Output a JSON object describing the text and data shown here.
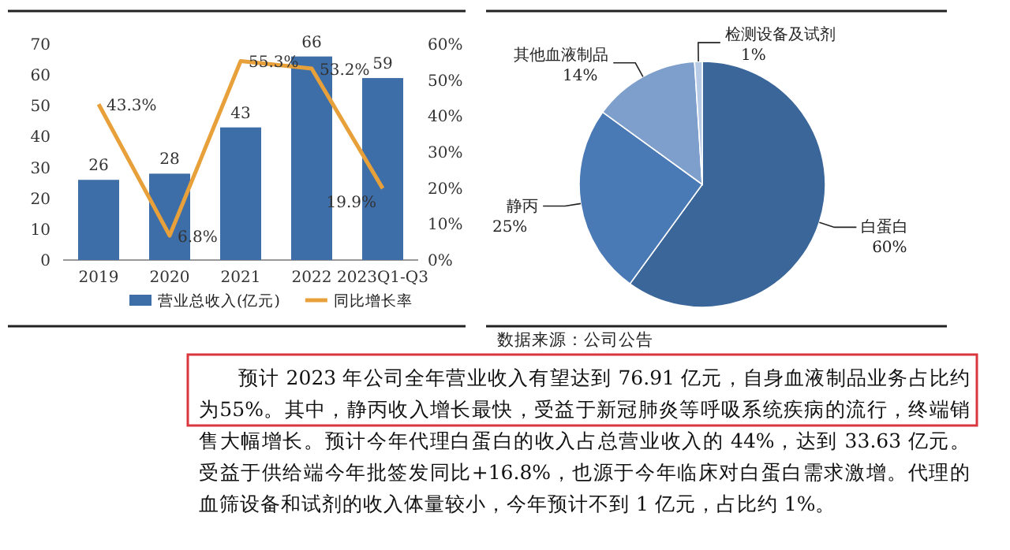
{
  "chart_data": [
    {
      "type": "bar",
      "categories": [
        "2019",
        "2020",
        "2021",
        "2022",
        "2023Q1-Q3"
      ],
      "series": [
        {
          "name": "营业总收入(亿元)",
          "color": "#3d6ea8",
          "values": [
            26,
            28,
            43,
            66,
            59
          ],
          "value_labels": [
            "26",
            "28",
            "43",
            "66",
            "59"
          ]
        },
        {
          "name": "同比增长率",
          "type": "line",
          "axis": "y2",
          "color": "#e8a13a",
          "values": [
            43.3,
            6.8,
            55.3,
            53.2,
            19.9
          ],
          "value_labels": [
            "43.3%",
            "6.8%",
            "55.3%",
            "53.2%",
            "19.9%"
          ]
        }
      ],
      "ylim": [
        0,
        70
      ],
      "yticks": [
        0,
        10,
        20,
        30,
        40,
        50,
        60,
        70
      ],
      "y2lim": [
        0,
        60
      ],
      "y2ticks": [
        {
          "value": 0,
          "label": "0%"
        },
        {
          "value": 10,
          "label": "10%"
        },
        {
          "value": 20,
          "label": "20%"
        },
        {
          "value": 30,
          "label": "30%"
        },
        {
          "value": 40,
          "label": "40%"
        },
        {
          "value": 50,
          "label": "50%"
        },
        {
          "value": 60,
          "label": "60%"
        }
      ],
      "legend": "bottom"
    },
    {
      "type": "pie",
      "categories": [
        "白蛋白",
        "静丙",
        "其他血液制品",
        "检测设备及试剂"
      ],
      "values": [
        60,
        25,
        14,
        1
      ],
      "colors": [
        "#3b6699",
        "#4a7ab5",
        "#7e9fcc",
        "#b8cbe6"
      ],
      "value_labels": [
        "60%",
        "25%",
        "14%",
        "1%"
      ],
      "annotations": [
        "数据来源：公司公告"
      ]
    },
    {
      "type": "other",
      "annotations": [
        "预计 2023 年公司全年营业收入有望达到 76.91 亿元，自身血液制品业务占比约为55%。其中，静丙收入增长最快，受益于新冠肺炎等呼吸系统疾病的流行，终端销售大幅增长。预计今年代理白蛋白的收入占总营业收入的 44%，达到 33.63 亿元。受益于供给端今年批签发同比+16.8%，也源于今年临床对白蛋白需求激增。代理的血筛设备和试剂的收入体量较小，今年预计不到 1 亿元，占比约 1%。"
      ]
    }
  ]
}
